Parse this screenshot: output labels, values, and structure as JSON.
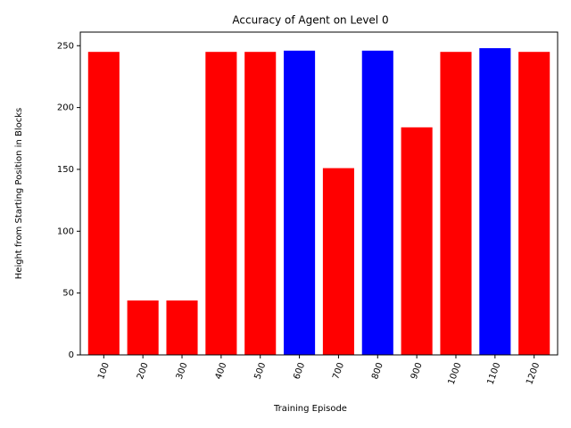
{
  "chart_data": {
    "type": "bar",
    "title": "Accuracy of Agent on Level 0",
    "xlabel": "Training Episode",
    "ylabel": "Height from Starting Position in Blocks",
    "categories": [
      "100",
      "200",
      "300",
      "400",
      "500",
      "600",
      "700",
      "800",
      "900",
      "1000",
      "1100",
      "1200"
    ],
    "values": [
      245,
      44,
      44,
      245,
      245,
      246,
      151,
      246,
      184,
      245,
      248,
      245
    ],
    "colors": [
      "#ff0000",
      "#ff0000",
      "#ff0000",
      "#ff0000",
      "#ff0000",
      "#0000ff",
      "#ff0000",
      "#0000ff",
      "#ff0000",
      "#ff0000",
      "#0000ff",
      "#ff0000"
    ],
    "ylim": [
      0,
      261
    ],
    "yticks": [
      0,
      50,
      100,
      150,
      200,
      250
    ],
    "grid": false
  }
}
